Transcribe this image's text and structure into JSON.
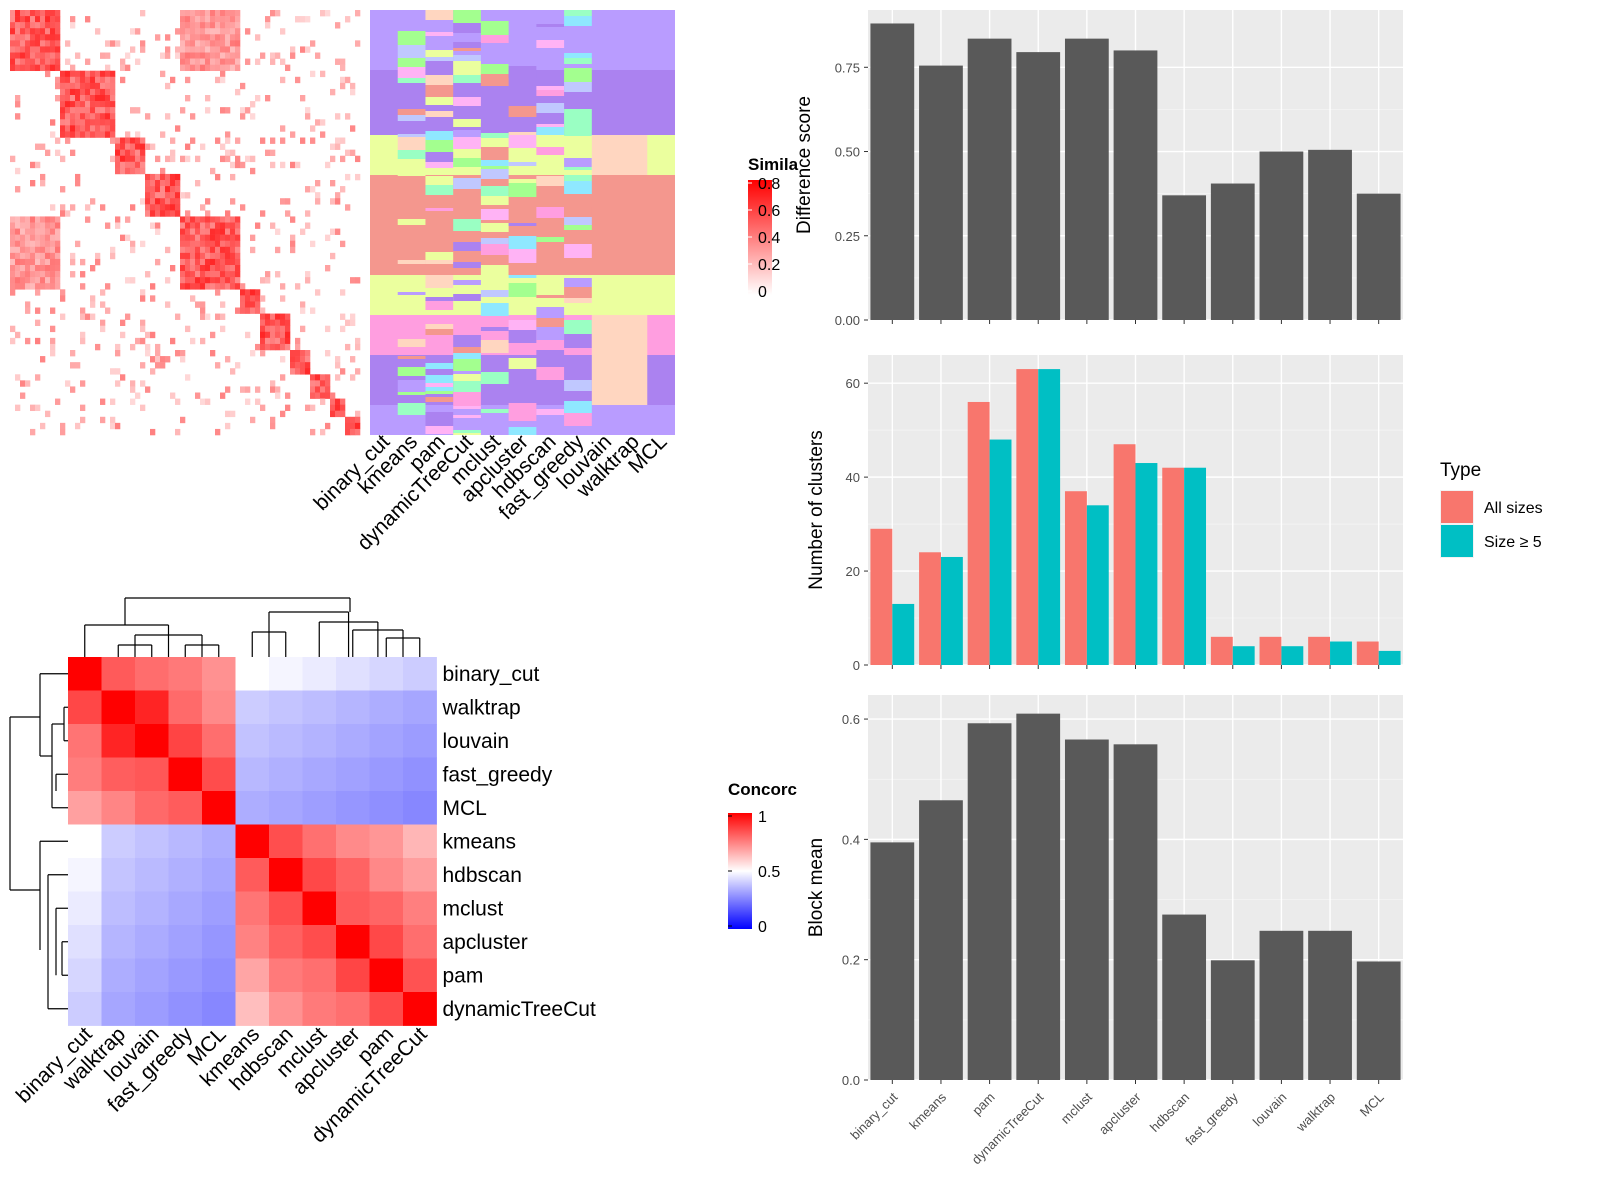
{
  "colors": {
    "panel_bg": "#ebebeb",
    "grid_major": "#ffffff",
    "bar_fill": "#595959",
    "all_sizes": "#f8766d",
    "size_ge5": "#00bfc4",
    "sim_high": "#ff0000",
    "sim_low": "#ffffff",
    "conc_high": "#ff0000",
    "conc_mid": "#ffffff",
    "conc_low": "#0000ff"
  },
  "similarity_heatmap": {
    "legend_title": "Simila",
    "legend_ticks": [
      "0.8",
      "0.6",
      "0.4",
      "0.2",
      "0"
    ],
    "methods": [
      "binary_cut",
      "kmeans",
      "pam",
      "dynamicTreeCut",
      "mclust",
      "apcluster",
      "hdbscan",
      "fast_greedy",
      "louvain",
      "walktrap",
      "MCL"
    ]
  },
  "concordance_heatmap": {
    "legend_title": "Concorc",
    "legend_ticks": [
      "1",
      "0.5",
      "0"
    ],
    "row_labels": [
      "binary_cut",
      "walktrap",
      "louvain",
      "fast_greedy",
      "MCL",
      "kmeans",
      "hdbscan",
      "mclust",
      "apcluster",
      "pam",
      "dynamicTreeCut"
    ],
    "col_labels": [
      "binary_cut",
      "walktrap",
      "louvain",
      "fast_greedy",
      "MCL",
      "kmeans",
      "hdbscan",
      "mclust",
      "apcluster",
      "pam",
      "dynamicTreeCut"
    ]
  },
  "chart_data": [
    {
      "type": "bar",
      "categories": [
        "binary_cut",
        "kmeans",
        "pam",
        "dynamicTreeCut",
        "mclust",
        "apcluster",
        "hdbscan",
        "fast_greedy",
        "louvain",
        "walktrap",
        "MCL"
      ],
      "values": [
        0.88,
        0.755,
        0.835,
        0.795,
        0.835,
        0.8,
        0.37,
        0.405,
        0.5,
        0.505,
        0.375
      ],
      "xlabel": "",
      "ylabel": "Difference score",
      "ylim": [
        0,
        0.92
      ],
      "yticks": [
        "0.00",
        "0.25",
        "0.50",
        "0.75"
      ],
      "grid": true
    },
    {
      "type": "bar",
      "categories": [
        "binary_cut",
        "kmeans",
        "pam",
        "dynamicTreeCut",
        "mclust",
        "apcluster",
        "hdbscan",
        "fast_greedy",
        "louvain",
        "walktrap",
        "MCL"
      ],
      "series": [
        {
          "name": "All sizes",
          "values": [
            29,
            24,
            56,
            63,
            37,
            47,
            42,
            6,
            6,
            6,
            5
          ]
        },
        {
          "name": "Size ≥ 5",
          "values": [
            13,
            23,
            48,
            63,
            34,
            43,
            42,
            4,
            4,
            5,
            3
          ]
        }
      ],
      "xlabel": "",
      "ylabel": "Number of clusters",
      "ylim": [
        0,
        66
      ],
      "yticks": [
        "0",
        "20",
        "40",
        "60"
      ],
      "legend_title": "Type",
      "legend_position": "right",
      "grid": true
    },
    {
      "type": "bar",
      "categories": [
        "binary_cut",
        "kmeans",
        "pam",
        "dynamicTreeCut",
        "mclust",
        "apcluster",
        "hdbscan",
        "fast_greedy",
        "louvain",
        "walktrap",
        "MCL"
      ],
      "values": [
        0.395,
        0.465,
        0.593,
        0.609,
        0.566,
        0.558,
        0.275,
        0.199,
        0.248,
        0.248,
        0.197
      ],
      "xlabel": "",
      "ylabel": "Block mean",
      "ylim": [
        0,
        0.64
      ],
      "yticks": [
        "0.0",
        "0.2",
        "0.4",
        "0.6"
      ],
      "grid": true
    }
  ]
}
